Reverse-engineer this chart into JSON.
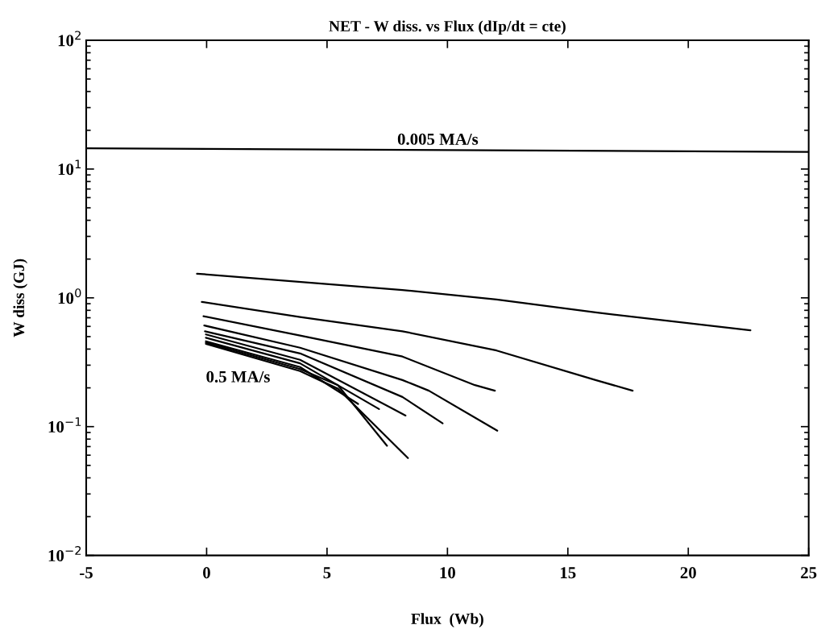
{
  "chart_data": {
    "type": "line",
    "title": "NET - W diss. vs Flux (dIp/dt = cte)",
    "xlabel": "Flux  (Wb)",
    "ylabel": "W diss (GJ)",
    "log": "y",
    "grid": false,
    "legend": false,
    "marker": "none",
    "line_style": "solid",
    "xlim": [
      -5,
      25
    ],
    "xticks": [
      -5,
      0,
      5,
      10,
      15,
      20,
      25
    ],
    "ylim": [
      0.01,
      100
    ],
    "yticks": [
      {
        "value": 0.01,
        "label": "10$^{−2}$"
      },
      {
        "value": 0.1,
        "label": "10$^{−1}$"
      },
      {
        "value": 1,
        "label": "10$^{0}$"
      },
      {
        "value": 10,
        "label": "10$^{1}$"
      },
      {
        "value": 100,
        "label": "10$^{2}$"
      }
    ],
    "series": [
      {
        "color": "#000000",
        "x": [
          -5,
          25
        ],
        "values": [
          14.5,
          13.6
        ]
      },
      {
        "color": "#000000",
        "x": [
          -0.4,
          8.13,
          12.04,
          16.15,
          22.58
        ],
        "values": [
          1.54,
          1.15,
          0.97,
          0.77,
          0.56
        ]
      },
      {
        "color": "#000000",
        "x": [
          -0.2,
          3.88,
          8.13,
          12.04,
          16.15,
          17.69
        ],
        "values": [
          0.93,
          0.71,
          0.55,
          0.39,
          0.23,
          0.19
        ]
      },
      {
        "color": "#000000",
        "x": [
          -0.13,
          3.88,
          8.13,
          11.14,
          11.97
        ],
        "values": [
          0.72,
          0.51,
          0.35,
          0.21,
          0.19
        ]
      },
      {
        "color": "#000000",
        "x": [
          -0.1,
          3.88,
          8.13,
          9.23,
          12.07
        ],
        "values": [
          0.61,
          0.41,
          0.23,
          0.19,
          0.093
        ]
      },
      {
        "color": "#000000",
        "x": [
          -0.07,
          3.88,
          8.13,
          9.8
        ],
        "values": [
          0.55,
          0.37,
          0.17,
          0.106
        ]
      },
      {
        "color": "#000000",
        "x": [
          -0.03,
          3.88,
          8.26
        ],
        "values": [
          0.52,
          0.33,
          0.122
        ]
      },
      {
        "color": "#000000",
        "x": [
          -0.03,
          3.88,
          7.16
        ],
        "values": [
          0.49,
          0.31,
          0.137
        ]
      },
      {
        "color": "#000000",
        "x": [
          -0.03,
          3.88,
          6.29
        ],
        "values": [
          0.46,
          0.29,
          0.15
        ]
      },
      {
        "color": "#000000",
        "x": [
          -0.03,
          3.88,
          5.45,
          7.49
        ],
        "values": [
          0.45,
          0.28,
          0.21,
          0.071
        ]
      },
      {
        "name": "0.5 MA/s",
        "color": "#000000",
        "x": [
          -0.03,
          3.88,
          5.45,
          8.36
        ],
        "values": [
          0.44,
          0.27,
          0.197,
          0.057
        ]
      }
    ],
    "annotations": [
      {
        "text": "0.005 MA/s",
        "x": 9.6,
        "y": 14.5
      }
    ]
  }
}
